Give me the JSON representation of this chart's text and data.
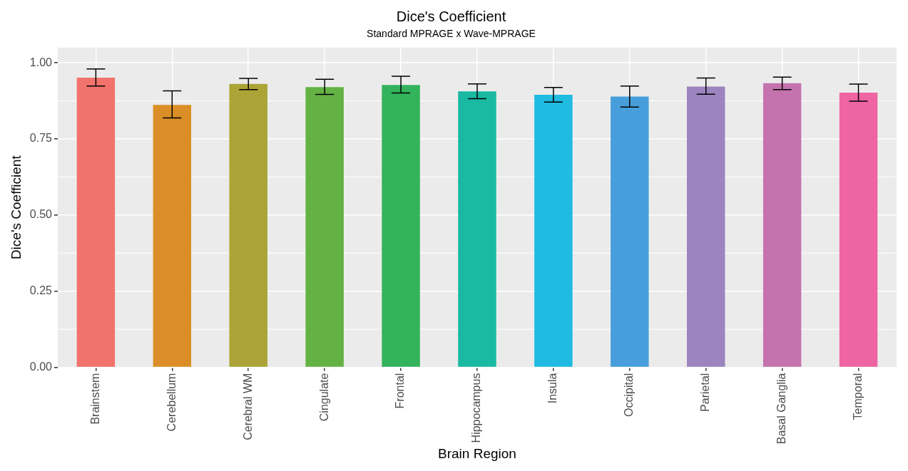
{
  "chart_data": {
    "type": "bar",
    "title": "Dice's Coefficient",
    "subtitle": "Standard MPRAGE x Wave-MPRAGE",
    "xlabel": "Brain Region",
    "ylabel": "Dice's Coefficient",
    "categories": [
      "Brainstem",
      "Cerebellum",
      "Cerebral WM",
      "Cingulate",
      "Frontal",
      "Hippocampus",
      "Insula",
      "Occipital",
      "Parietal",
      "Basal Ganglia",
      "Temporal"
    ],
    "values": [
      0.951,
      0.862,
      0.931,
      0.92,
      0.927,
      0.906,
      0.895,
      0.889,
      0.922,
      0.933,
      0.902
    ],
    "errors": [
      [
        0.924,
        0.98
      ],
      [
        0.819,
        0.908
      ],
      [
        0.912,
        0.949
      ],
      [
        0.896,
        0.946
      ],
      [
        0.901,
        0.956
      ],
      [
        0.882,
        0.931
      ],
      [
        0.871,
        0.919
      ],
      [
        0.855,
        0.924
      ],
      [
        0.897,
        0.95
      ],
      [
        0.912,
        0.953
      ],
      [
        0.874,
        0.93
      ]
    ],
    "colors": [
      "#f2736c",
      "#db8e27",
      "#aca436",
      "#64b244",
      "#33b35c",
      "#1ab9a2",
      "#1fbbe0",
      "#479edb",
      "#9b84bf",
      "#c573ae",
      "#ef65a3"
    ],
    "ylim": [
      0,
      1.05
    ],
    "yticks": [
      {
        "value": 0,
        "label": "0.00"
      },
      {
        "value": 0.25,
        "label": "0.25"
      },
      {
        "value": 0.5,
        "label": "0.50"
      },
      {
        "value": 0.75,
        "label": "0.75"
      },
      {
        "value": 1,
        "label": "1.00"
      }
    ],
    "grid": true,
    "legend": false
  }
}
